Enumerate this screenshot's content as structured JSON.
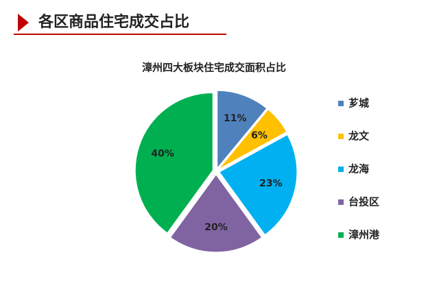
{
  "header": {
    "title": "各区商品住宅成交占比"
  },
  "chart_data": {
    "type": "pie",
    "title": "漳州四大板块住宅成交面积占比",
    "categories": [
      "芗城",
      "龙文",
      "龙海",
      "台投区",
      "漳州港"
    ],
    "values": [
      11,
      6,
      23,
      20,
      40
    ],
    "value_labels": [
      "11%",
      "6%",
      "23%",
      "20%",
      "40%"
    ],
    "colors": [
      "#4f81bd",
      "#ffc000",
      "#00b0f0",
      "#8064a2",
      "#00b050"
    ],
    "legend": "right"
  }
}
